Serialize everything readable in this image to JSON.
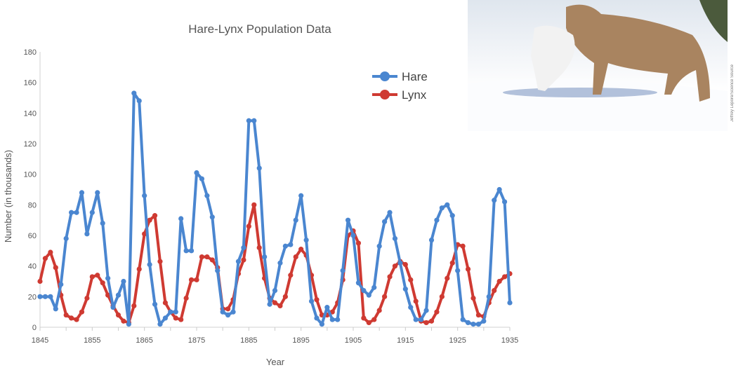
{
  "chart_data": {
    "type": "line",
    "title": "Hare-Lynx Population Data",
    "xlabel": "Year",
    "ylabel": "Number (in thousands)",
    "xlim": [
      1845,
      1935
    ],
    "ylim": [
      0,
      180
    ],
    "xticks": [
      "1845",
      "1855",
      "1865",
      "1875",
      "1885",
      "1895",
      "1905",
      "1915",
      "1925",
      "1935"
    ],
    "yticks": [
      "0",
      "20",
      "40",
      "60",
      "80",
      "100",
      "120",
      "140",
      "160",
      "180"
    ],
    "legend_position": "top-right",
    "grid": false,
    "x_start": 1845,
    "series": [
      {
        "name": "Hare",
        "color": "#4a86d0",
        "values": [
          20,
          20,
          20,
          12,
          28,
          58,
          75,
          75,
          88,
          61,
          75,
          88,
          68,
          32,
          13,
          21,
          30,
          2,
          153,
          148,
          86,
          41,
          15,
          2,
          6,
          10,
          10,
          71,
          50,
          50,
          101,
          97,
          86,
          72,
          37,
          10,
          8,
          10,
          43,
          52,
          135,
          135,
          104,
          46,
          15,
          24,
          42,
          53,
          54,
          70,
          86,
          57,
          17,
          6,
          2,
          13,
          5,
          5,
          37,
          70,
          60,
          29,
          24,
          21,
          26,
          53,
          69,
          75,
          58,
          42,
          25,
          13,
          5,
          5,
          11,
          57,
          70,
          78,
          80,
          73,
          37,
          5,
          3,
          2,
          2,
          4,
          20,
          83,
          90,
          82,
          16
        ]
      },
      {
        "name": "Lynx",
        "color": "#cf3a32",
        "values": [
          30,
          45,
          49,
          39,
          21,
          8,
          6,
          5,
          10,
          19,
          33,
          34,
          29,
          21,
          14,
          8,
          4,
          3,
          14,
          38,
          61,
          70,
          73,
          43,
          16,
          10,
          6,
          5,
          19,
          31,
          31,
          46,
          46,
          44,
          39,
          12,
          12,
          18,
          35,
          44,
          66,
          80,
          52,
          32,
          19,
          16,
          14,
          20,
          34,
          46,
          51,
          47,
          34,
          18,
          8,
          8,
          10,
          16,
          31,
          60,
          63,
          55,
          6,
          3,
          5,
          11,
          20,
          33,
          40,
          43,
          41,
          31,
          17,
          4,
          3,
          4,
          10,
          20,
          32,
          42,
          54,
          53,
          38,
          19,
          8,
          7,
          16,
          24,
          30,
          33,
          35
        ]
      }
    ]
  },
  "photo": {
    "credit": "Jeffrey Lepore/Science Source"
  }
}
